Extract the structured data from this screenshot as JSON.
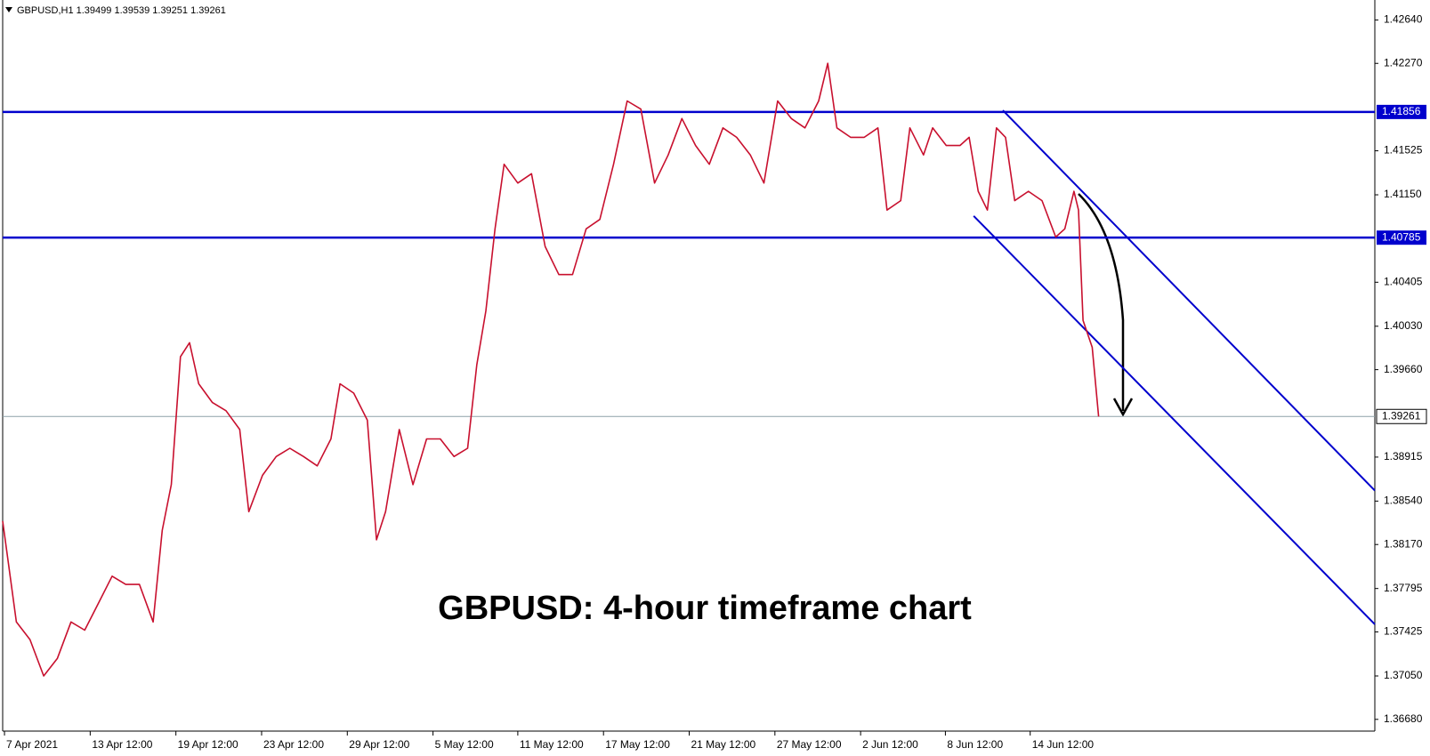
{
  "chart_data": {
    "type": "line",
    "title": "GBPUSD,H1  1.39499 1.39539 1.39251 1.39261",
    "annotation": "GBPUSD: 4-hour timeframe chart",
    "x": [
      0,
      15,
      30,
      45,
      60,
      75,
      90,
      105,
      120,
      135,
      150,
      165,
      175,
      185,
      195,
      205,
      215,
      230,
      245,
      260,
      270,
      285,
      300,
      315,
      330,
      345,
      360,
      370,
      385,
      400,
      410,
      420,
      435,
      450,
      465,
      480,
      495,
      510,
      520,
      530,
      540,
      550,
      565,
      580,
      595,
      610,
      625,
      640,
      655,
      670,
      685,
      700,
      715,
      730,
      745,
      760,
      775,
      790,
      805,
      820,
      835,
      850,
      865,
      880,
      895,
      905,
      915,
      930,
      945,
      960,
      970,
      985,
      995,
      1010,
      1020,
      1035,
      1050,
      1060,
      1070,
      1080,
      1090,
      1100,
      1110,
      1125,
      1140,
      1155,
      1165,
      1175,
      1180,
      1185,
      1195,
      1202
    ],
    "series": [
      {
        "name": "GBPUSD",
        "color": "#c8102e",
        "values": [
          1.3837,
          1.3751,
          1.3736,
          1.3705,
          1.372,
          1.3751,
          1.3744,
          1.3767,
          1.379,
          1.3783,
          1.3783,
          1.3751,
          1.3829,
          1.3868,
          1.3977,
          1.3989,
          1.3954,
          1.3938,
          1.3931,
          1.3915,
          1.3845,
          1.3876,
          1.3892,
          1.3899,
          1.3892,
          1.3884,
          1.3907,
          1.3954,
          1.3946,
          1.3923,
          1.3821,
          1.3845,
          1.3915,
          1.3868,
          1.3907,
          1.3907,
          1.3892,
          1.3899,
          1.397,
          1.4016,
          1.4086,
          1.4141,
          1.4125,
          1.4133,
          1.4071,
          1.4047,
          1.4047,
          1.4086,
          1.4094,
          1.4141,
          1.4195,
          1.4188,
          1.4125,
          1.4149,
          1.418,
          1.4157,
          1.4141,
          1.4172,
          1.4164,
          1.4149,
          1.4125,
          1.4195,
          1.418,
          1.4172,
          1.4195,
          1.4227,
          1.4172,
          1.4164,
          1.4164,
          1.4172,
          1.4102,
          1.411,
          1.4172,
          1.4149,
          1.4172,
          1.4157,
          1.4157,
          1.4164,
          1.4118,
          1.4102,
          1.4172,
          1.4164,
          1.411,
          1.4118,
          1.411,
          1.4079,
          1.4086,
          1.4118,
          1.4102,
          1.4008,
          1.3985,
          1.39261
        ]
      }
    ],
    "xlim": [
      0,
      1505
    ],
    "xticks": [
      {
        "value": 2,
        "label": "7 Apr 2021"
      },
      {
        "value": 96,
        "label": "13 Apr 12:00"
      },
      {
        "value": 190,
        "label": "19 Apr 12:00"
      },
      {
        "value": 284,
        "label": "23 Apr 12:00"
      },
      {
        "value": 378,
        "label": "29 Apr 12:00"
      },
      {
        "value": 472,
        "label": "5 May 12:00"
      },
      {
        "value": 565,
        "label": "11 May 12:00"
      },
      {
        "value": 659,
        "label": "17 May 12:00"
      },
      {
        "value": 753,
        "label": "21 May 12:00"
      },
      {
        "value": 847,
        "label": "27 May 12:00"
      },
      {
        "value": 941,
        "label": "2 Jun 12:00"
      },
      {
        "value": 1034,
        "label": "8 Jun 12:00"
      },
      {
        "value": 1127,
        "label": "14 Jun 12:00"
      }
    ],
    "ylim": [
      1.3658,
      1.4281
    ],
    "yticks": [
      {
        "value": 1.4264,
        "label": "1.42640"
      },
      {
        "value": 1.4227,
        "label": "1.42270"
      },
      {
        "value": 1.41525,
        "label": "1.41525"
      },
      {
        "value": 1.4115,
        "label": "1.41150"
      },
      {
        "value": 1.40405,
        "label": "1.40405"
      },
      {
        "value": 1.4003,
        "label": "1.40030"
      },
      {
        "value": 1.3966,
        "label": "1.39660"
      },
      {
        "value": 1.38915,
        "label": "1.38915"
      },
      {
        "value": 1.3854,
        "label": "1.38540"
      },
      {
        "value": 1.3817,
        "label": "1.38170"
      },
      {
        "value": 1.37795,
        "label": "1.37795"
      },
      {
        "value": 1.37425,
        "label": "1.37425"
      },
      {
        "value": 1.3705,
        "label": "1.37050"
      },
      {
        "value": 1.3668,
        "label": "1.36680"
      }
    ],
    "levels": [
      {
        "value": 1.41856,
        "label": "1.41856",
        "color": "#0000cd"
      },
      {
        "value": 1.40785,
        "label": "1.40785",
        "color": "#0000cd"
      }
    ],
    "current_price": {
      "value": 1.39261,
      "label": "1.39261",
      "color": "#8ea0a8"
    },
    "trendlines": [
      {
        "x": [
          1097,
          1505
        ],
        "y": [
          1.4187,
          1.3863
        ],
        "color": "#0000cd"
      },
      {
        "x": [
          1065,
          1505
        ],
        "y": [
          1.4097,
          1.3749
        ],
        "color": "#0000cd"
      }
    ]
  }
}
